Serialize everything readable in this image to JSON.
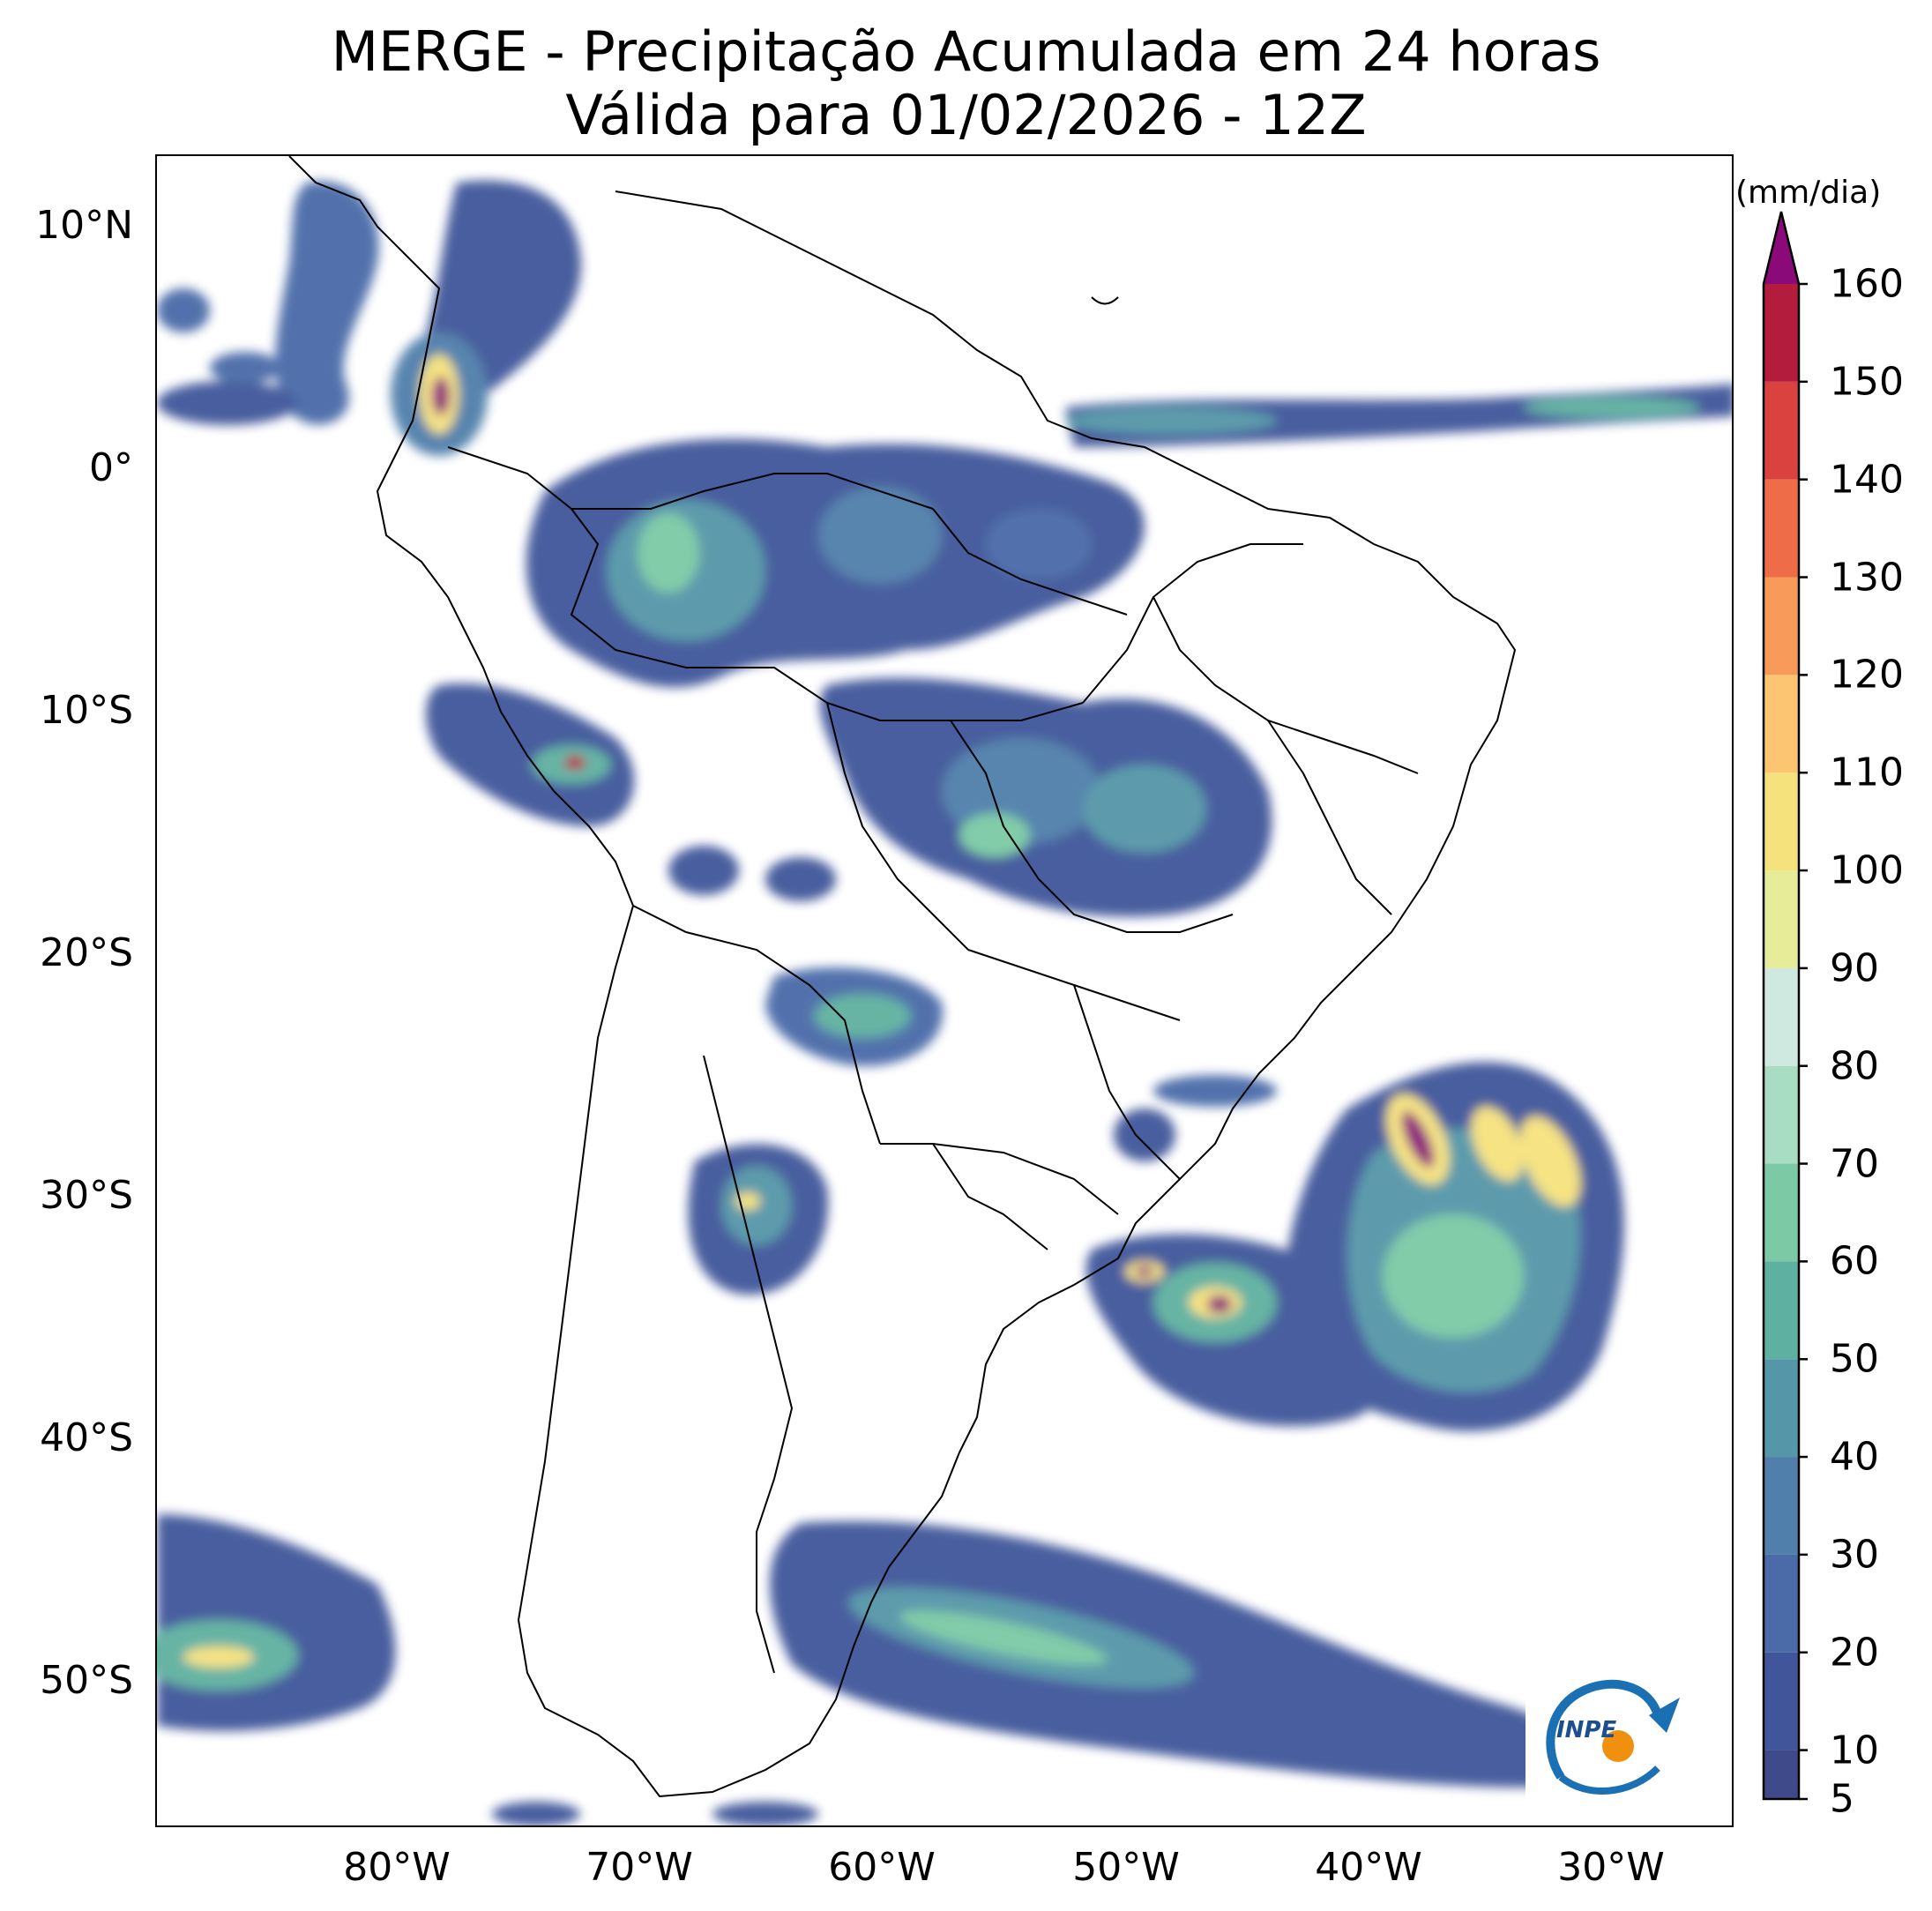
{
  "title": {
    "line1": "MERGE - Precipitação Acumulada em 24 horas",
    "line2": "Válida para 01/02/2026 - 12Z"
  },
  "map": {
    "region": "South America",
    "extent": {
      "lon": [
        -90,
        -25
      ],
      "lat": [
        -56,
        13
      ]
    },
    "lat_ticks": [
      "10°N",
      "0°",
      "10°S",
      "20°S",
      "30°S",
      "40°S",
      "50°S"
    ],
    "lon_ticks": [
      "80°W",
      "70°W",
      "60°W",
      "50°W",
      "40°W",
      "30°W"
    ]
  },
  "colorbar": {
    "unit": "(mm/dia)",
    "labels": [
      "5",
      "10",
      "20",
      "30",
      "40",
      "50",
      "60",
      "70",
      "80",
      "90",
      "100",
      "110",
      "120",
      "130",
      "140",
      "150",
      "160"
    ],
    "min": 5,
    "max": 160,
    "extend": "max",
    "colors": [
      "#3f4a8a",
      "#41569a",
      "#4a6aa8",
      "#4f7faa",
      "#5596a8",
      "#5eb0a0",
      "#7ccaa5",
      "#a8dcc3",
      "#cfe8e0",
      "#e6ec97",
      "#f6e27d",
      "#fbc571",
      "#f79a5a",
      "#ee6d48",
      "#d9423e",
      "#b41c3e",
      "#8b0a7a"
    ]
  },
  "logo": {
    "text": "INPE",
    "icon": "inpe-logo-icon"
  }
}
